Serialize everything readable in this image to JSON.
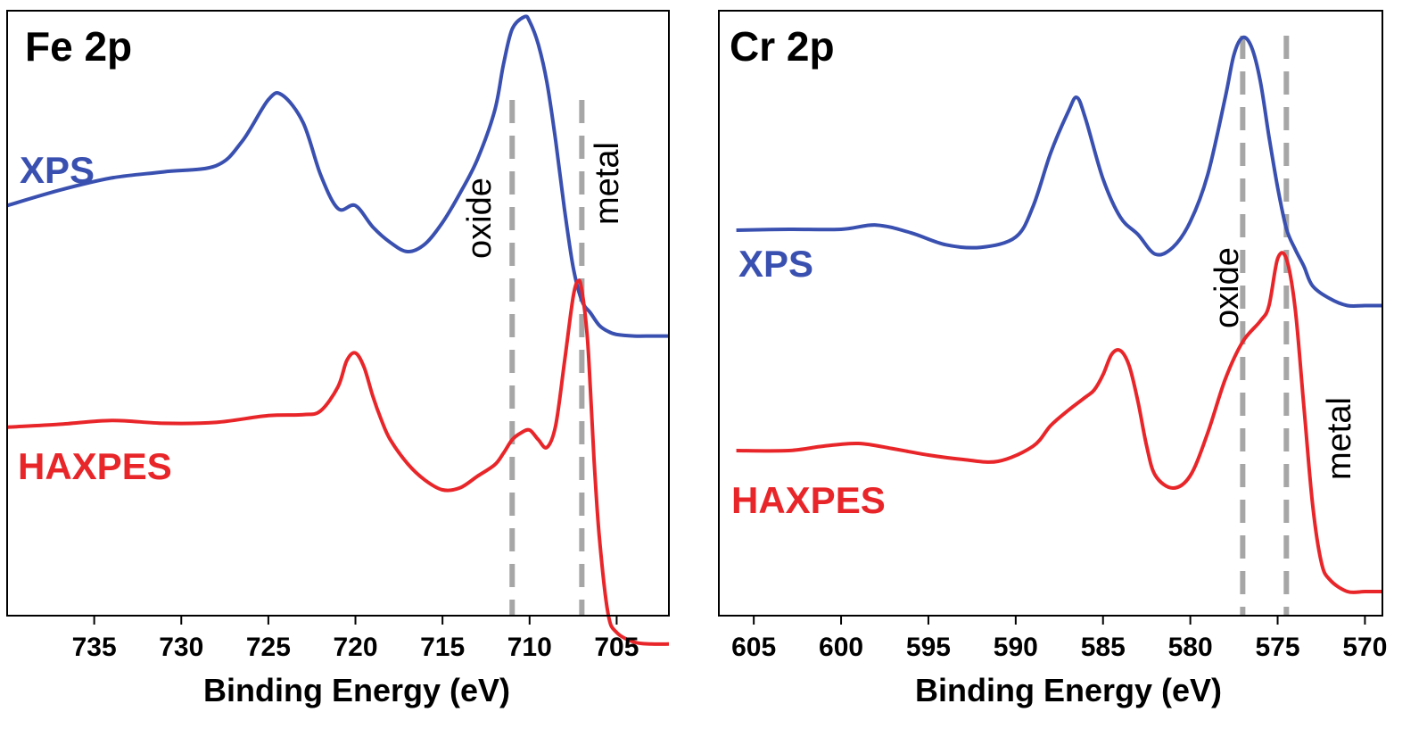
{
  "colors": {
    "xps": "#3a50b0",
    "haxpes": "#e8262a",
    "reference_line": "#a6a6a6",
    "axis": "#000000"
  },
  "chart_data": [
    {
      "type": "line",
      "title": "Fe 2p",
      "xlabel": "Binding Energy (eV)",
      "ylabel": "",
      "xlim": [
        740,
        702
      ],
      "x_reversed": true,
      "y_ticks_shown": false,
      "grid": false,
      "x_ticks": [
        735,
        730,
        725,
        720,
        715,
        710,
        705
      ],
      "series": [
        {
          "name": "XPS",
          "color": "#3a50b0",
          "x": [
            740,
            737,
            734,
            731,
            728,
            726.5,
            725,
            724.2,
            723,
            722,
            721,
            720,
            719,
            718,
            717,
            716,
            715,
            714,
            713,
            712,
            711.5,
            711,
            710.3,
            710,
            709.5,
            709,
            708.5,
            708,
            707.5,
            707,
            706.5,
            706,
            705.5,
            705,
            704,
            703,
            702
          ],
          "y": [
            0.8,
            0.9,
            0.98,
            1.02,
            1.06,
            1.22,
            1.49,
            1.52,
            1.34,
            1.0,
            0.78,
            0.8,
            0.66,
            0.56,
            0.5,
            0.55,
            0.69,
            0.88,
            1.1,
            1.42,
            1.72,
            1.95,
            2.03,
            2.0,
            1.85,
            1.6,
            1.22,
            0.78,
            0.4,
            0.18,
            0.1,
            0.02,
            -0.02,
            -0.04,
            -0.05,
            -0.05,
            -0.05
          ]
        },
        {
          "name": "HAXPES",
          "color": "#e8262a",
          "x": [
            740,
            737,
            734,
            731,
            728,
            725,
            723,
            722,
            721,
            720.5,
            720,
            719.5,
            719,
            718.5,
            718,
            717,
            716,
            715,
            714,
            713,
            712,
            711.5,
            711,
            710.5,
            710,
            709.5,
            709,
            708.5,
            708,
            707.5,
            707.2,
            707,
            706.7,
            706.5,
            706.3,
            706,
            705.5,
            705,
            704,
            703,
            702
          ],
          "y": [
            0.03,
            0.06,
            0.1,
            0.07,
            0.08,
            0.15,
            0.16,
            0.2,
            0.45,
            0.72,
            0.8,
            0.65,
            0.35,
            0.1,
            -0.1,
            -0.35,
            -0.52,
            -0.62,
            -0.6,
            -0.48,
            -0.36,
            -0.24,
            -0.1,
            -0.03,
            0.0,
            -0.1,
            -0.18,
            0.05,
            0.7,
            1.38,
            1.55,
            1.45,
            1.0,
            0.4,
            -0.3,
            -1.1,
            -1.9,
            -2.1,
            -2.2,
            -2.22,
            -2.22
          ]
        }
      ],
      "series_labels": [
        "XPS",
        "HAXPES"
      ],
      "annotations": [
        {
          "text": "oxide",
          "x": 711.0
        },
        {
          "text": "metal",
          "x": 707.0
        }
      ]
    },
    {
      "type": "line",
      "title": "Cr 2p",
      "xlabel": "Binding Energy (eV)",
      "ylabel": "",
      "xlim": [
        607,
        569
      ],
      "x_reversed": true,
      "y_ticks_shown": false,
      "grid": false,
      "x_ticks": [
        605,
        600,
        595,
        590,
        585,
        580,
        575,
        570
      ],
      "series": [
        {
          "name": "XPS",
          "color": "#3a50b0",
          "x": [
            606,
            603,
            600,
            598,
            596,
            594,
            592,
            590,
            589,
            588,
            587,
            586.5,
            586,
            585,
            584,
            583,
            582,
            581,
            580,
            579,
            578,
            577.5,
            577,
            576.5,
            576,
            575.5,
            575,
            574.5,
            574,
            573.5,
            573,
            572,
            571,
            570,
            569
          ],
          "y": [
            0.0,
            0.01,
            0.01,
            0.06,
            -0.03,
            -0.17,
            -0.2,
            -0.08,
            0.28,
            0.9,
            1.38,
            1.55,
            1.3,
            0.6,
            0.15,
            -0.05,
            -0.28,
            -0.2,
            0.1,
            0.65,
            1.55,
            2.05,
            2.25,
            2.14,
            1.75,
            1.1,
            0.5,
            0.02,
            -0.22,
            -0.42,
            -0.65,
            -0.8,
            -0.88,
            -0.88,
            -0.88
          ]
        },
        {
          "name": "HAXPES",
          "color": "#e8262a",
          "x": [
            606,
            603,
            601,
            599,
            597,
            595,
            593,
            591,
            589,
            588,
            587,
            586,
            585.5,
            585,
            584.5,
            584,
            583.5,
            583,
            582.5,
            582,
            581,
            580,
            579,
            578,
            577,
            576,
            575.5,
            575,
            574.5,
            574,
            573.5,
            573,
            572.5,
            572,
            571,
            570,
            569
          ],
          "y": [
            0.0,
            0.0,
            0.05,
            0.08,
            0.02,
            -0.05,
            -0.1,
            -0.12,
            0.05,
            0.28,
            0.45,
            0.6,
            0.68,
            0.85,
            1.08,
            1.12,
            0.95,
            0.55,
            0.05,
            -0.28,
            -0.42,
            -0.28,
            0.2,
            0.8,
            1.22,
            1.45,
            1.62,
            2.15,
            2.15,
            1.6,
            0.5,
            -0.6,
            -1.25,
            -1.45,
            -1.58,
            -1.58,
            -1.58
          ]
        }
      ],
      "series_labels": [
        "XPS",
        "HAXPES"
      ],
      "annotations": [
        {
          "text": "oxide",
          "x": 577.0
        },
        {
          "text": "metal",
          "x": 574.5
        }
      ]
    }
  ]
}
